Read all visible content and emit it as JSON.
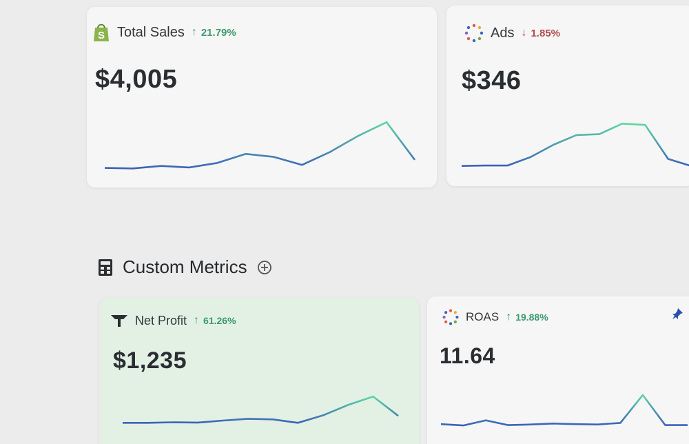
{
  "cards": {
    "total_sales": {
      "title": "Total Sales",
      "delta": "21.79%",
      "direction": "up",
      "value": "$4,005",
      "icon": "shopify-bag-icon",
      "trend": [
        0.06,
        0.05,
        0.1,
        0.07,
        0.16,
        0.34,
        0.28,
        0.12,
        0.38,
        0.7,
        0.97,
        0.22
      ]
    },
    "ads": {
      "title": "Ads",
      "delta": "1.85%",
      "direction": "down",
      "value": "$346",
      "icon": "dotted-ring-icon",
      "trend": [
        0.02,
        0.03,
        0.03,
        0.22,
        0.5,
        0.72,
        0.74,
        0.98,
        0.95,
        0.18,
        0.02
      ]
    },
    "net_profit": {
      "title": "Net Profit",
      "delta": "61.26%",
      "direction": "up",
      "value": "$1,235",
      "icon": "triple-whale-logo-icon",
      "trend": [
        0.04,
        0.04,
        0.06,
        0.05,
        0.12,
        0.18,
        0.16,
        0.04,
        0.3,
        0.66,
        0.95,
        0.28
      ]
    },
    "roas": {
      "title": "ROAS",
      "delta": "19.88%",
      "direction": "up",
      "value": "11.64",
      "icon": "dotted-ring-icon",
      "trend": [
        0.06,
        0.02,
        0.18,
        0.03,
        0.05,
        0.08,
        0.06,
        0.05,
        0.1,
        0.98,
        0.03,
        0.03
      ]
    }
  },
  "custom_metrics": {
    "title": "Custom Metrics",
    "icon": "calculator-icon",
    "add_icon": "add-circle-icon"
  },
  "pin_icon": "pin-icon",
  "colors": {
    "up": "#3e9a6e",
    "down": "#b04a4a",
    "line_start": "#3b62b8",
    "line_end": "#5fd6a3"
  }
}
